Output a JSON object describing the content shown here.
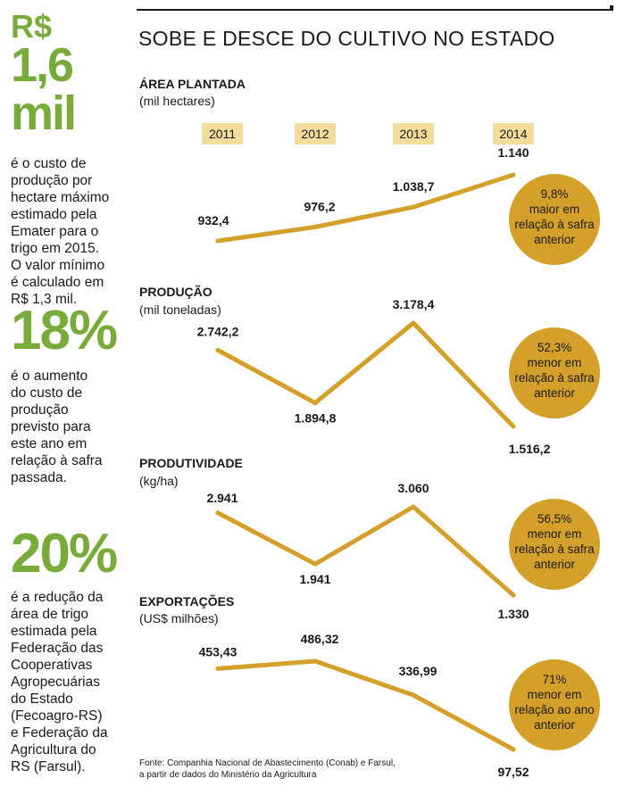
{
  "stats": [
    {
      "value": "R$",
      "value2": "1,6 mil",
      "desc": [
        "é o custo de",
        "produção por",
        "hectare máximo",
        "estimado pela",
        "Emater para o",
        "trigo em 2015.",
        "O valor mínimo",
        "é calculado em",
        "R$ 1,3 mil."
      ]
    },
    {
      "value": "18%",
      "desc": [
        "é o aumento",
        "do custo de",
        "produção",
        "previsto para",
        "este ano em",
        "relação à safra",
        "passada."
      ]
    },
    {
      "value": "20%",
      "desc": [
        "é a redução da",
        "área de trigo",
        "estimada pela",
        "Federação das",
        "Cooperativas",
        "Agropecuárias",
        "do Estado",
        "(Fecoagro-RS)",
        "e Federação da",
        "Agricultura do",
        "RS (Farsul)."
      ]
    }
  ],
  "title": "SOBE E DESCE DO CULTIVO NO ESTADO",
  "colors": {
    "line": "#d4a02a",
    "circle": "#d4a02a",
    "year_bg": "#f3dc9c",
    "accent_green": "#79ab3a"
  },
  "chart_data": [
    {
      "type": "line",
      "title": "ÁREA PLANTADA",
      "unit": "(mil hectares)",
      "x": [
        "2011",
        "2012",
        "2013",
        "2014"
      ],
      "values": [
        932.4,
        976.2,
        1038.7,
        1140
      ],
      "labels": [
        "932,4",
        "976,2",
        "1.038,7",
        "1.140"
      ],
      "note": [
        "9,8%",
        "maior em",
        "relação à safra",
        "anterior"
      ]
    },
    {
      "type": "line",
      "title": "PRODUÇÃO",
      "unit": "(mil toneladas)",
      "x": [
        "2011",
        "2012",
        "2013",
        "2014"
      ],
      "values": [
        2742.2,
        1894.8,
        3178.4,
        1516.2
      ],
      "labels": [
        "2.742,2",
        "1.894,8",
        "3.178,4",
        "1.516,2"
      ],
      "note": [
        "52,3%",
        "menor em",
        "relação à safra",
        "anterior"
      ]
    },
    {
      "type": "line",
      "title": "PRODUTIVIDADE",
      "unit": "(kg/ha)",
      "x": [
        "2011",
        "2012",
        "2013",
        "2014"
      ],
      "values": [
        2941,
        1941,
        3060,
        1330
      ],
      "labels": [
        "2.941",
        "1.941",
        "3.060",
        "1.330"
      ],
      "note": [
        "56,5%",
        "menor em",
        "relação à safra",
        "anterior"
      ]
    },
    {
      "type": "line",
      "title": "EXPORTAÇÕES",
      "unit": "(US$ milhões)",
      "x": [
        "2011",
        "2012",
        "2013",
        "2014"
      ],
      "values": [
        453.43,
        486.32,
        336.99,
        97.52
      ],
      "labels": [
        "453,43",
        "486,32",
        "336,99",
        "97,52"
      ],
      "note": [
        "71%",
        "menor em",
        "relação ao ano",
        "anterior"
      ]
    }
  ],
  "source": [
    "Fonte: Companhia Nacional de Abastecimento (Conab) e Farsul,",
    "a partir de dados do Ministério da Agricultura"
  ]
}
